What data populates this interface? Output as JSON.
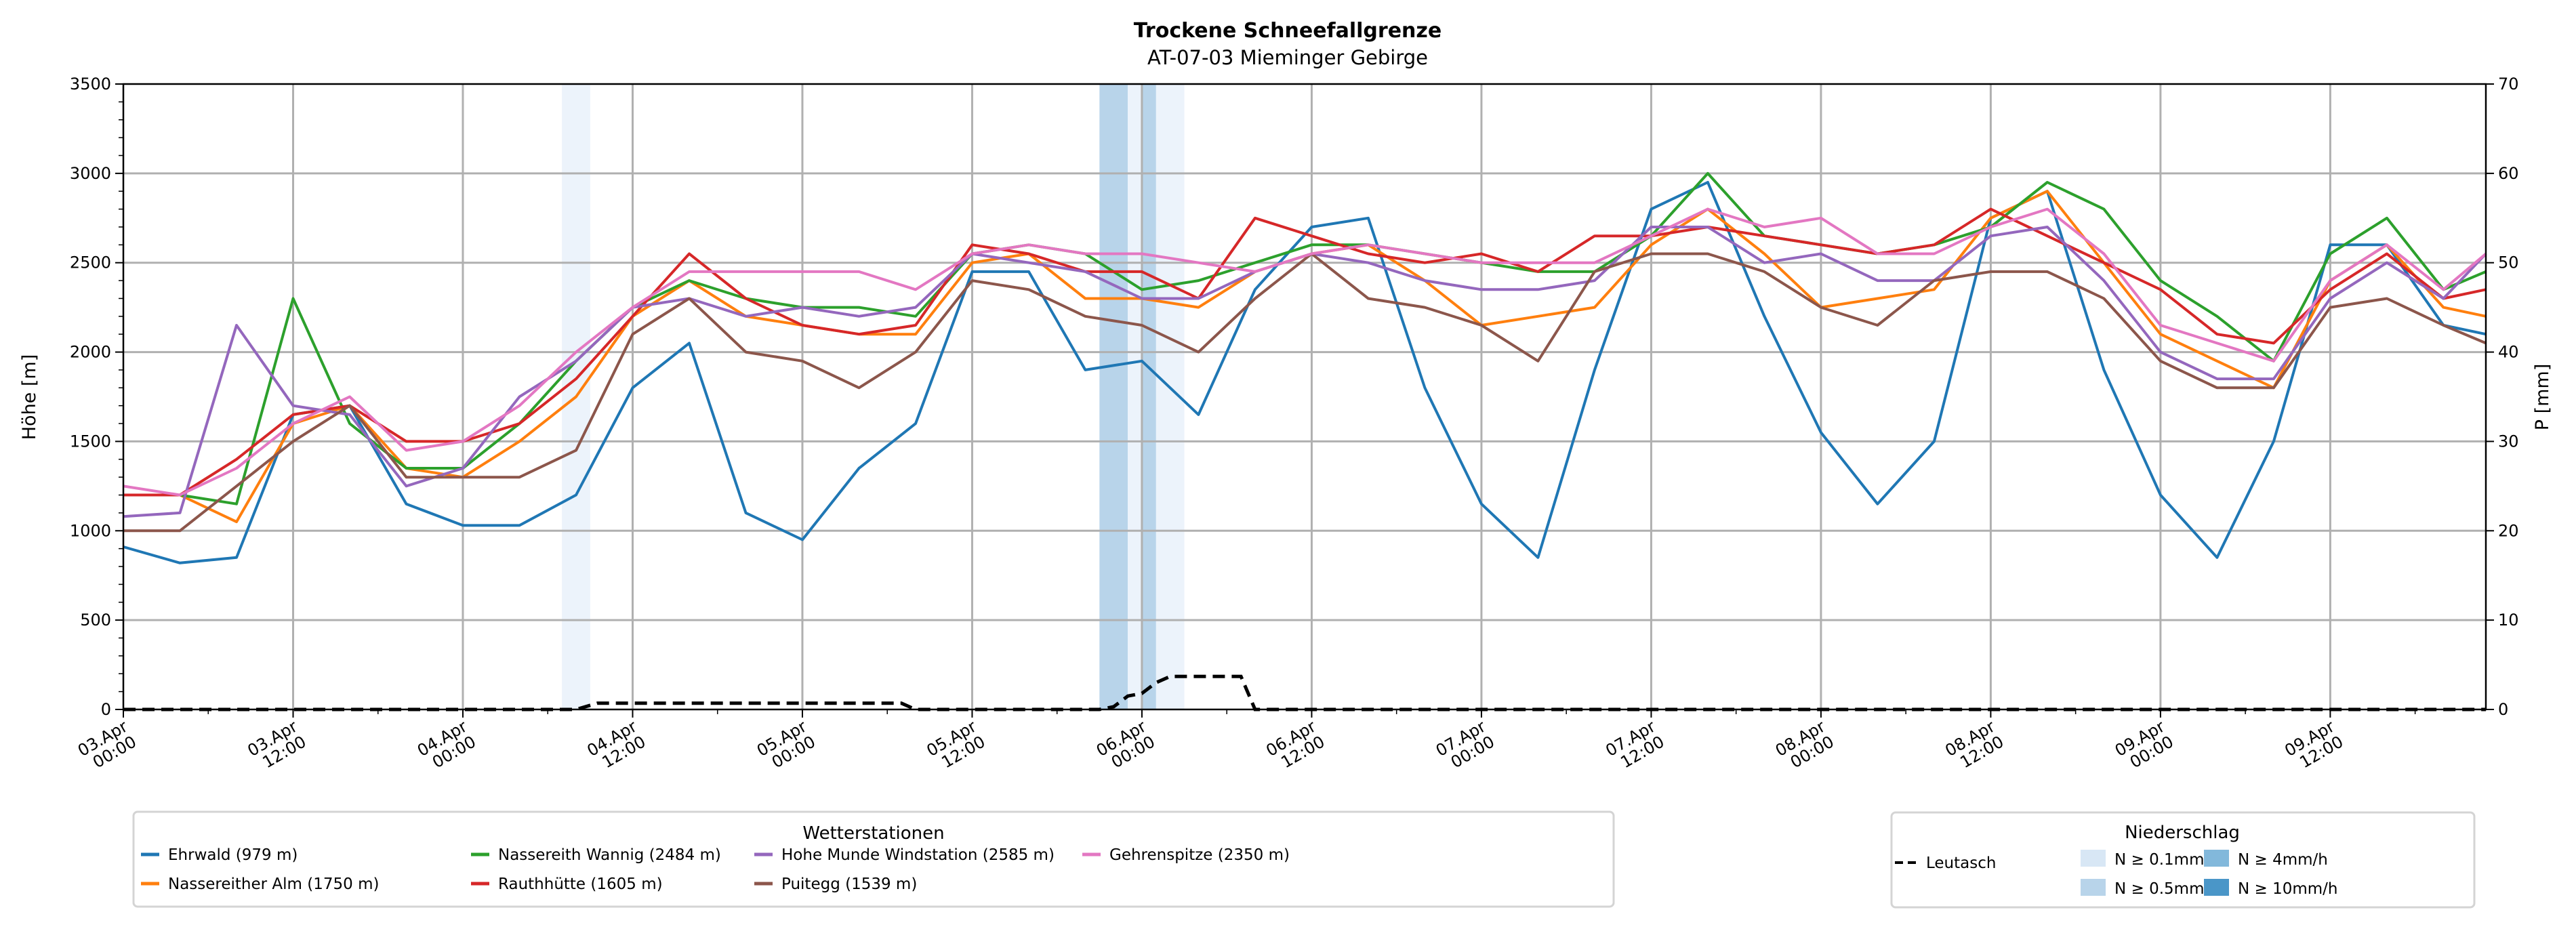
{
  "chart_data": {
    "type": "line",
    "title": "Trockene Schneefallgrenze",
    "subtitle": "AT-07-03 Mieminger Gebirge",
    "ylabel": "Höhe [m]",
    "y2label": "P [mm]",
    "ylim": [
      0,
      3500
    ],
    "y2lim": [
      0,
      70
    ],
    "xlim_hours": [
      0,
      167
    ],
    "grid": true,
    "yticks": [
      0,
      500,
      1000,
      1500,
      2000,
      2500,
      3000,
      3500
    ],
    "y2ticks": [
      0,
      10,
      20,
      30,
      40,
      50,
      60,
      70
    ],
    "xticks": [
      {
        "hour": 0,
        "label": [
          "03.Apr",
          "00:00"
        ]
      },
      {
        "hour": 12,
        "label": [
          "03.Apr",
          "12:00"
        ]
      },
      {
        "hour": 24,
        "label": [
          "04.Apr",
          "00:00"
        ]
      },
      {
        "hour": 36,
        "label": [
          "04.Apr",
          "12:00"
        ]
      },
      {
        "hour": 48,
        "label": [
          "05.Apr",
          "00:00"
        ]
      },
      {
        "hour": 60,
        "label": [
          "05.Apr",
          "12:00"
        ]
      },
      {
        "hour": 72,
        "label": [
          "06.Apr",
          "00:00"
        ]
      },
      {
        "hour": 84,
        "label": [
          "06.Apr",
          "12:00"
        ]
      },
      {
        "hour": 96,
        "label": [
          "07.Apr",
          "00:00"
        ]
      },
      {
        "hour": 108,
        "label": [
          "07.Apr",
          "12:00"
        ]
      },
      {
        "hour": 120,
        "label": [
          "08.Apr",
          "00:00"
        ]
      },
      {
        "hour": 132,
        "label": [
          "08.Apr",
          "12:00"
        ]
      },
      {
        "hour": 144,
        "label": [
          "09.Apr",
          "00:00"
        ]
      },
      {
        "hour": 156,
        "label": [
          "09.Apr",
          "12:00"
        ]
      }
    ],
    "x_hours": [
      0,
      4,
      8,
      12,
      16,
      20,
      24,
      28,
      32,
      36,
      40,
      44,
      48,
      52,
      56,
      60,
      64,
      68,
      72,
      76,
      80,
      84,
      88,
      92,
      96,
      100,
      104,
      108,
      112,
      116,
      120,
      124,
      128,
      132,
      136,
      140,
      144,
      148,
      152,
      156,
      160,
      164,
      167
    ],
    "series": [
      {
        "name": "Ehrwald (979 m)",
        "color": "#1f77b4",
        "values": [
          910,
          820,
          850,
          1650,
          1700,
          1150,
          1030,
          1030,
          1200,
          1800,
          2050,
          1100,
          950,
          1350,
          1600,
          2450,
          2450,
          1900,
          1950,
          1650,
          2350,
          2700,
          2750,
          1800,
          1150,
          850,
          1900,
          2800,
          2950,
          2200,
          1550,
          1150,
          1500,
          2750,
          2900,
          1900,
          1200,
          850,
          1500,
          2600,
          2600,
          2150,
          2100
        ]
      },
      {
        "name": "Nassereither Alm (1750 m)",
        "color": "#ff7f0e",
        "values": [
          1200,
          1200,
          1050,
          1600,
          1700,
          1350,
          1300,
          1500,
          1750,
          2200,
          2400,
          2200,
          2150,
          2100,
          2100,
          2500,
          2550,
          2300,
          2300,
          2250,
          2450,
          2550,
          2600,
          2400,
          2150,
          2200,
          2250,
          2600,
          2800,
          2550,
          2250,
          2300,
          2350,
          2750,
          2900,
          2500,
          2100,
          1950,
          1800,
          2400,
          2600,
          2250,
          2200
        ]
      },
      {
        "name": "Nassereith Wannig (2484 m)",
        "color": "#2ca02c",
        "values": [
          1200,
          1200,
          1150,
          2300,
          1600,
          1350,
          1350,
          1600,
          1950,
          2250,
          2400,
          2300,
          2250,
          2250,
          2200,
          2550,
          2600,
          2550,
          2350,
          2400,
          2500,
          2600,
          2600,
          2550,
          2500,
          2450,
          2450,
          2650,
          3000,
          2650,
          2600,
          2550,
          2600,
          2700,
          2950,
          2800,
          2400,
          2200,
          1950,
          2550,
          2750,
          2350,
          2450
        ]
      },
      {
        "name": "Rauthhütte (1605 m)",
        "color": "#d62728",
        "values": [
          1200,
          1200,
          1400,
          1650,
          1700,
          1500,
          1500,
          1600,
          1850,
          2200,
          2550,
          2300,
          2150,
          2100,
          2150,
          2600,
          2550,
          2450,
          2450,
          2300,
          2750,
          2650,
          2550,
          2500,
          2550,
          2450,
          2650,
          2650,
          2700,
          2650,
          2600,
          2550,
          2600,
          2800,
          2650,
          2500,
          2350,
          2100,
          2050,
          2350,
          2550,
          2300,
          2350
        ]
      },
      {
        "name": "Hohe Munde Windstation (2585 m)",
        "color": "#9467bd",
        "values": [
          1080,
          1100,
          2150,
          1700,
          1650,
          1250,
          1350,
          1750,
          1950,
          2250,
          2300,
          2200,
          2250,
          2200,
          2250,
          2550,
          2500,
          2450,
          2300,
          2300,
          2450,
          2550,
          2500,
          2400,
          2350,
          2350,
          2400,
          2700,
          2700,
          2500,
          2550,
          2400,
          2400,
          2650,
          2700,
          2400,
          2000,
          1850,
          1850,
          2300,
          2500,
          2300,
          2550
        ]
      },
      {
        "name": "Puitegg (1539 m)",
        "color": "#8c564b",
        "values": [
          1000,
          1000,
          1250,
          1500,
          1700,
          1300,
          1300,
          1300,
          1450,
          2100,
          2300,
          2000,
          1950,
          1800,
          2000,
          2400,
          2350,
          2200,
          2150,
          2000,
          2300,
          2550,
          2300,
          2250,
          2150,
          1950,
          2450,
          2550,
          2550,
          2450,
          2250,
          2150,
          2400,
          2450,
          2450,
          2300,
          1950,
          1800,
          1800,
          2250,
          2300,
          2150,
          2050
        ]
      },
      {
        "name": "Gehrenspitze (2350 m)",
        "color": "#e377c2",
        "values": [
          1250,
          1200,
          1350,
          1600,
          1750,
          1450,
          1500,
          1700,
          2000,
          2250,
          2450,
          2450,
          2450,
          2450,
          2350,
          2550,
          2600,
          2550,
          2550,
          2500,
          2450,
          2550,
          2600,
          2550,
          2500,
          2500,
          2500,
          2650,
          2800,
          2700,
          2750,
          2550,
          2550,
          2700,
          2800,
          2550,
          2150,
          2050,
          1950,
          2400,
          2600,
          2350,
          2550
        ]
      }
    ],
    "precipitation": {
      "name": "Leutasch",
      "color": "#000000",
      "x_hours": [
        0,
        32,
        33.5,
        55,
        56,
        69,
        70,
        71,
        72,
        73,
        74,
        79,
        80,
        167
      ],
      "values_mm": [
        0,
        0,
        0.7,
        0.7,
        0,
        0,
        0.3,
        1.5,
        1.8,
        3.0,
        3.7,
        3.7,
        0,
        0
      ]
    },
    "precip_bands": [
      {
        "start_hour": 31,
        "end_hour": 33,
        "level": "N ≥ 0.1mm/h"
      },
      {
        "start_hour": 69,
        "end_hour": 71,
        "level": "N ≥ 0.5mm/h"
      },
      {
        "start_hour": 71,
        "end_hour": 72,
        "level": "N ≥ 0.1mm/h"
      },
      {
        "start_hour": 72,
        "end_hour": 73,
        "level": "N ≥ 0.5mm/h"
      },
      {
        "start_hour": 73,
        "end_hour": 75,
        "level": "N ≥ 0.1mm/h"
      }
    ],
    "legend_stations": {
      "title": "Wetterstationen",
      "placement": "bottom-left"
    },
    "legend_precip": {
      "title": "Niederschlag",
      "placement": "bottom-right",
      "line_label": "Leutasch",
      "levels": [
        {
          "label": "N ≥ 0.1mm/h",
          "color": "#d8e7f5"
        },
        {
          "label": "N ≥ 0.5mm/h",
          "color": "#b8d4ea"
        },
        {
          "label": "N ≥ 4mm/h",
          "color": "#82b8db"
        },
        {
          "label": "N ≥ 10mm/h",
          "color": "#4a96c8"
        }
      ]
    }
  }
}
